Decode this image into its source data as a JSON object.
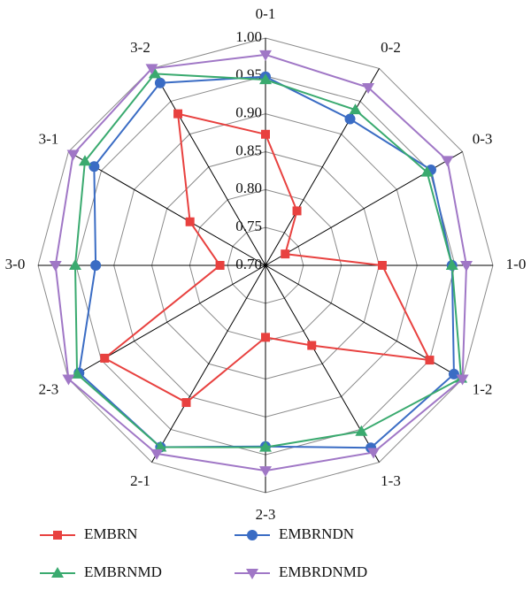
{
  "chart_data": {
    "type": "radar",
    "categories": [
      "0-1",
      "0-2",
      "0-3",
      "1-0",
      "1-2",
      "1-3",
      "2-3",
      "2-1",
      "2-3",
      "3-0",
      "3-1",
      "3-2"
    ],
    "ylim": [
      0.7,
      1.0
    ],
    "yticks": [
      {
        "value": 0.7,
        "label": "0.70"
      },
      {
        "value": 0.75,
        "label": "0.75"
      },
      {
        "value": 0.8,
        "label": "0.80"
      },
      {
        "value": 0.85,
        "label": "0.85"
      },
      {
        "value": 0.9,
        "label": "0.90"
      },
      {
        "value": 0.95,
        "label": "0.95"
      },
      {
        "value": 1.0,
        "label": "1.00"
      }
    ],
    "grid": true,
    "series": [
      {
        "name": "EMBRN",
        "color": "#e8413f",
        "marker": "square",
        "values": [
          0.873,
          0.783,
          0.73,
          0.854,
          0.95,
          0.822,
          0.795,
          0.909,
          0.945,
          0.76,
          0.815,
          0.931
        ]
      },
      {
        "name": "EMBRNDN",
        "color": "#3a6cc4",
        "marker": "circle",
        "values": [
          0.949,
          0.923,
          0.952,
          0.946,
          0.987,
          0.978,
          0.939,
          0.977,
          0.984,
          0.924,
          0.961,
          0.978
        ]
      },
      {
        "name": "EMBRNMD",
        "color": "#3aaa6f",
        "marker": "triangle-up",
        "values": [
          0.945,
          0.937,
          0.946,
          0.946,
          0.998,
          0.953,
          0.94,
          0.977,
          0.987,
          0.951,
          0.975,
          0.992
        ]
      },
      {
        "name": "EMBRDNMD",
        "color": "#a077c6",
        "marker": "triangle-down",
        "values": [
          0.978,
          0.971,
          0.977,
          0.965,
          1.0,
          0.985,
          0.971,
          0.987,
          1.0,
          0.977,
          0.993,
          1.0
        ]
      }
    ]
  }
}
